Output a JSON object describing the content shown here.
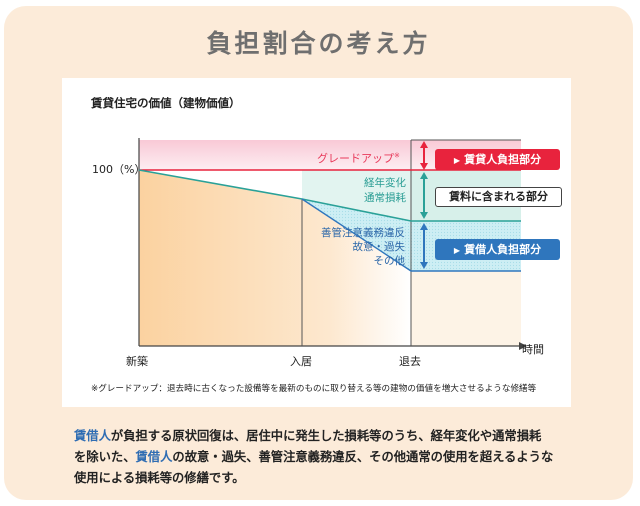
{
  "heading": "負担割合の考え方",
  "chart": {
    "title": "賃貸住宅の価値（建物価値）",
    "y_label": "100（%）",
    "x_labels": {
      "start": "新築",
      "move_in": "入居",
      "move_out": "退去",
      "axis": "時間"
    },
    "grade_up": "グレードアップ",
    "grade_up_mark": "※",
    "wear_label": [
      "経年変化",
      "通常損耗"
    ],
    "violation_label": [
      "善管注意義務違反",
      "故意・過失",
      "その他"
    ],
    "tags": {
      "landlord": "賃貸人負担部分",
      "rent": "賃料に含まれる部分",
      "tenant": "賃借人負担部分"
    },
    "note": "※グレードアップ：退去時に古くなった設備等を最新のものに取り替える等の建物の価値を増大させるような修繕等",
    "colors": {
      "pink": "#fbdde5",
      "teal": "#2aa198",
      "blue": "#2f76bd",
      "red": "#e8233d",
      "cyan": "#d2f0f5",
      "orange": "#fbd6a8"
    }
  },
  "caption": {
    "line1_hl": "賃借人",
    "line1_rest": "が負担する原状回復は、居住中に発生した損耗等のうち、経年変化や通常損耗",
    "line2_a": "を除いた、",
    "line2_hl": "賃借人",
    "line2_b": "の故意・過失、善管注意義務違反、その他通常の使用を超えるような",
    "line3": "使用による損耗等の修繕です。"
  }
}
